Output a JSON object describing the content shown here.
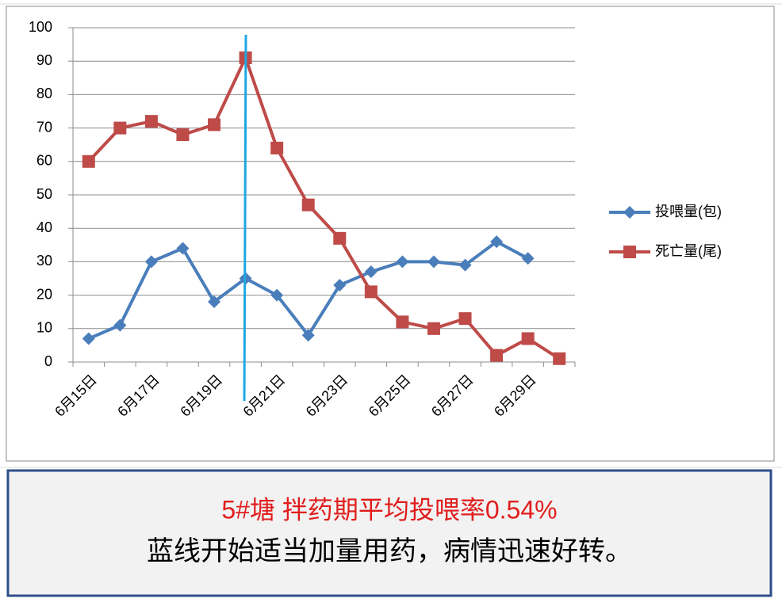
{
  "chart_data": {
    "type": "line",
    "categories": [
      "6月15日",
      null,
      "6月17日",
      null,
      "6月19日",
      null,
      "6月21日",
      null,
      "6月23日",
      null,
      "6月25日",
      null,
      "6月27日",
      null,
      "6月29日",
      null
    ],
    "series": [
      {
        "name": "投喂量(包)",
        "color": "#4a7ebb",
        "marker": "diamond",
        "values": [
          7,
          11,
          30,
          34,
          18,
          25,
          20,
          8,
          23,
          27,
          30,
          30,
          29,
          36,
          31,
          null
        ]
      },
      {
        "name": "死亡量(尾)",
        "color": "#be4b48",
        "marker": "square",
        "values": [
          60,
          70,
          72,
          68,
          71,
          91,
          64,
          47,
          37,
          21,
          12,
          10,
          13,
          2,
          7,
          1
        ]
      }
    ],
    "ylim": [
      0,
      100
    ],
    "yticks": [
      0,
      10,
      20,
      30,
      40,
      50,
      60,
      70,
      80,
      90,
      100
    ],
    "grid": true,
    "legend": "right",
    "annotations": [
      "5#塘 拌药期平均投喂率0.54%",
      "蓝线开始适当加量用药，病情迅速好转。"
    ]
  }
}
